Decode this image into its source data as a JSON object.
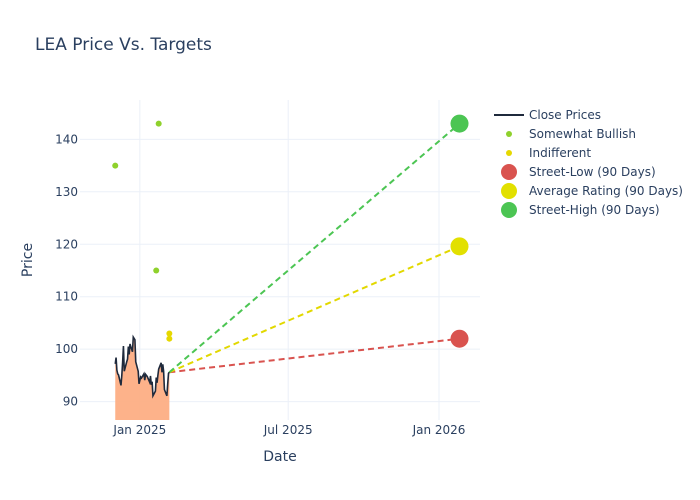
{
  "chart_data": {
    "type": "line",
    "title": "LEA Price Vs. Targets",
    "xlabel": "Date",
    "ylabel": "Price",
    "x_range": [
      "2024-10-20",
      "2026-02-20"
    ],
    "y_range": [
      86.5,
      147.5
    ],
    "x_ticks": [
      {
        "date": "2025-01-01",
        "label": "Jan 2025"
      },
      {
        "date": "2025-07-01",
        "label": "Jul 2025"
      },
      {
        "date": "2026-01-01",
        "label": "Jan 2026"
      }
    ],
    "y_ticks": [
      90,
      100,
      110,
      120,
      130,
      140
    ],
    "grid": true,
    "legend_position": "right",
    "legend": [
      {
        "key": "close",
        "label": "Close Prices",
        "kind": "line",
        "color": "#1f2a3c"
      },
      {
        "key": "somewhat_bullish",
        "label": "Somewhat Bullish",
        "kind": "dot",
        "color": "#8fd12c"
      },
      {
        "key": "indifferent",
        "label": "Indifferent",
        "kind": "dot",
        "color": "#e6d800"
      },
      {
        "key": "street_low",
        "label": "Street-Low (90 Days)",
        "kind": "bigdot",
        "color": "#d9534f"
      },
      {
        "key": "average",
        "label": "Average Rating (90 Days)",
        "kind": "bigdot",
        "color": "#e2e000"
      },
      {
        "key": "street_high",
        "label": "Street-High (90 Days)",
        "kind": "bigdot",
        "color": "#4cc553"
      }
    ],
    "close_prices": [
      [
        "2024-12-02",
        97.2
      ],
      [
        "2024-12-03",
        98.4
      ],
      [
        "2024-12-04",
        96.0
      ],
      [
        "2024-12-05",
        95.3
      ],
      [
        "2024-12-06",
        95.1
      ],
      [
        "2024-12-09",
        93.1
      ],
      [
        "2024-12-10",
        95.0
      ],
      [
        "2024-12-11",
        97.5
      ],
      [
        "2024-12-12",
        100.6
      ],
      [
        "2024-12-13",
        95.8
      ],
      [
        "2024-12-16",
        97.6
      ],
      [
        "2024-12-17",
        98.1
      ],
      [
        "2024-12-18",
        100.5
      ],
      [
        "2024-12-19",
        99.0
      ],
      [
        "2024-12-20",
        101.0
      ],
      [
        "2024-12-23",
        99.5
      ],
      [
        "2024-12-24",
        102.3
      ],
      [
        "2024-12-26",
        101.8
      ],
      [
        "2024-12-27",
        97.6
      ],
      [
        "2024-12-30",
        95.8
      ],
      [
        "2024-12-31",
        93.4
      ],
      [
        "2025-01-02",
        94.7
      ],
      [
        "2025-01-03",
        94.5
      ],
      [
        "2025-01-06",
        95.3
      ],
      [
        "2025-01-07",
        94.1
      ],
      [
        "2025-01-08",
        95.2
      ],
      [
        "2025-01-10",
        94.8
      ],
      [
        "2025-01-13",
        93.7
      ],
      [
        "2025-01-14",
        94.9
      ],
      [
        "2025-01-15",
        93.2
      ],
      [
        "2025-01-16",
        93.8
      ],
      [
        "2025-01-17",
        91.1
      ],
      [
        "2025-01-20",
        92.0
      ],
      [
        "2025-01-21",
        94.6
      ],
      [
        "2025-01-22",
        93.6
      ],
      [
        "2025-01-23",
        95.0
      ],
      [
        "2025-01-24",
        96.2
      ],
      [
        "2025-01-27",
        97.4
      ],
      [
        "2025-01-28",
        95.6
      ],
      [
        "2025-01-29",
        97.1
      ],
      [
        "2025-01-30",
        95.8
      ],
      [
        "2025-01-31",
        92.3
      ],
      [
        "2025-02-03",
        91.1
      ],
      [
        "2025-02-04",
        93.4
      ],
      [
        "2025-02-05",
        95.4
      ],
      [
        "2025-02-06",
        95.6
      ]
    ],
    "analyst_ratings": [
      {
        "category": "somewhat_bullish",
        "date": "2024-12-02",
        "value": 135
      },
      {
        "category": "somewhat_bullish",
        "date": "2025-01-24",
        "value": 143
      },
      {
        "category": "somewhat_bullish",
        "date": "2025-01-21",
        "value": 115
      },
      {
        "category": "indifferent",
        "date": "2025-02-06",
        "value": 103
      },
      {
        "category": "indifferent",
        "date": "2025-02-06",
        "value": 102
      }
    ],
    "targets": {
      "start": {
        "date": "2025-02-06",
        "value": 95.6
      },
      "end_date": "2026-01-26",
      "street_low": 102,
      "average": 119.6,
      "street_high": 143
    }
  }
}
